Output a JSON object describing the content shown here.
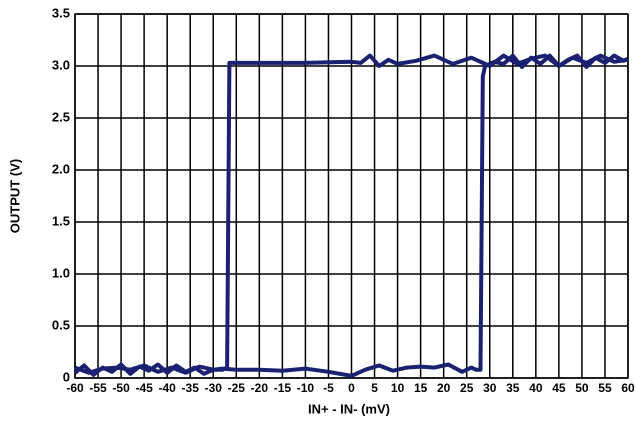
{
  "chart_data": {
    "type": "line",
    "xlabel": "IN+ - IN- (mV)",
    "ylabel": "OUTPUT (V)",
    "xlim": [
      -60,
      60
    ],
    "xticks": [
      -60,
      -55,
      -50,
      -45,
      -40,
      -35,
      -30,
      -25,
      -20,
      -15,
      -10,
      -5,
      0,
      5,
      10,
      15,
      20,
      25,
      30,
      35,
      40,
      45,
      50,
      55,
      60
    ],
    "ylim": [
      0,
      3.5
    ],
    "yticks": [
      0,
      0.5,
      {
        "value": 1,
        "label": "1.0"
      },
      1.5,
      {
        "value": 2,
        "label": "2.0"
      },
      2.5,
      {
        "value": 3,
        "label": "3.0"
      },
      3.5
    ],
    "grid": true,
    "series": [
      {
        "color": "#1b2070",
        "x": [
          -60,
          -58,
          -56,
          -54,
          -52,
          -50,
          -48,
          -46,
          -44,
          -42,
          -40,
          -38,
          -36,
          -34,
          -32,
          -30,
          -28,
          -25,
          -20,
          -15,
          -10,
          -5,
          0,
          3,
          6,
          9,
          12,
          15,
          18,
          21,
          24,
          26,
          27,
          28,
          28.5,
          29,
          31,
          33,
          35,
          37,
          39,
          41,
          43,
          45,
          47,
          49,
          51,
          53,
          55,
          57,
          59,
          60
        ],
        "values": [
          0.05,
          0.12,
          0.03,
          0.1,
          0.06,
          0.13,
          0.04,
          0.11,
          0.07,
          0.13,
          0.05,
          0.12,
          0.06,
          0.1,
          0.04,
          0.08,
          0.09,
          0.08,
          0.08,
          0.07,
          0.09,
          0.06,
          0.02,
          0.08,
          0.12,
          0.07,
          0.1,
          0.11,
          0.1,
          0.13,
          0.06,
          0.1,
          0.08,
          0.08,
          2.9,
          3.0,
          3.04,
          3.02,
          3.1,
          2.99,
          3.08,
          3.02,
          3.1,
          3.0,
          3.06,
          3.1,
          2.99,
          3.08,
          3.03,
          3.1,
          3.05,
          3.07
        ]
      },
      {
        "color": "#1b2070",
        "x": [
          -60,
          -57,
          -54,
          -51,
          -48,
          -45,
          -42,
          -39,
          -36,
          -33,
          -30,
          -28,
          -27,
          -26.5,
          -20,
          -10,
          0,
          2,
          4,
          6,
          8,
          10,
          14,
          18,
          22,
          26,
          30,
          33,
          36,
          39,
          42,
          45,
          48,
          51,
          54,
          57,
          60
        ],
        "values": [
          0.1,
          0.05,
          0.09,
          0.1,
          0.08,
          0.12,
          0.06,
          0.1,
          0.05,
          0.11,
          0.08,
          0.08,
          0.1,
          3.03,
          3.03,
          3.03,
          3.04,
          3.03,
          3.1,
          3.0,
          3.06,
          3.02,
          3.05,
          3.1,
          3.02,
          3.08,
          3.0,
          3.1,
          3.02,
          3.07,
          3.1,
          3.0,
          3.08,
          3.03,
          3.1,
          3.04,
          3.06
        ]
      }
    ]
  }
}
